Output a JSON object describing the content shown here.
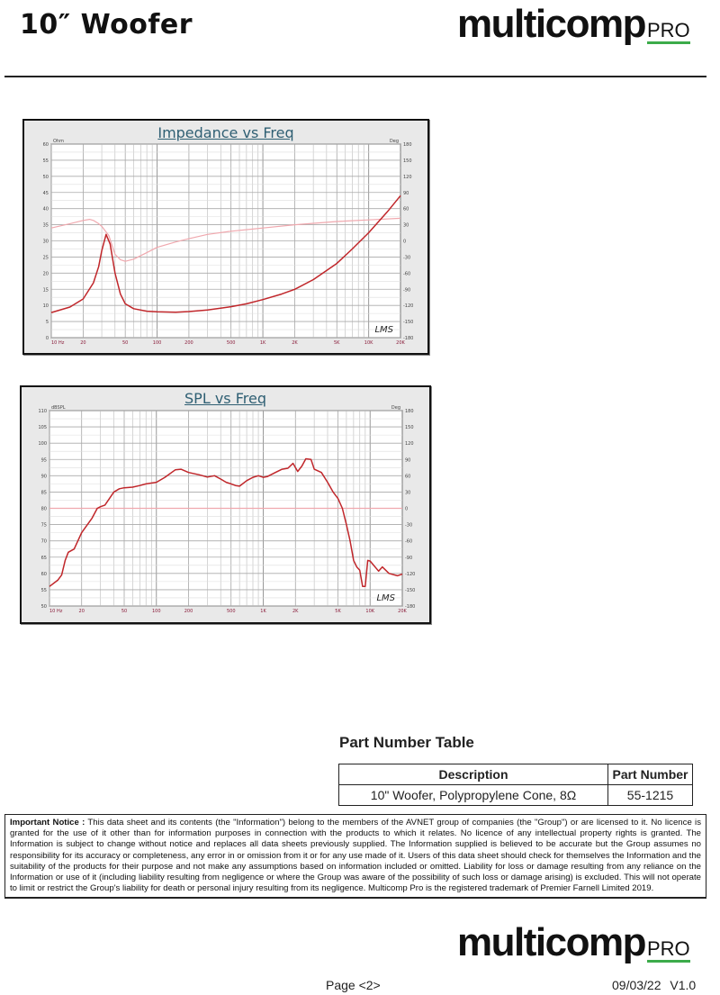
{
  "header": {
    "title": "10″ Woofer",
    "logo_main": "multicomp",
    "logo_pro": "PRO"
  },
  "charts_text": {
    "impedance_title": "Impedance vs Freq",
    "spl_title": "SPL vs Freq"
  },
  "chart_data": [
    {
      "type": "line",
      "title": "Impedance vs Freq",
      "ylabel": "Ohm",
      "y2label": "Deg",
      "xscale": "log",
      "xlim": [
        10,
        20000
      ],
      "ylim": [
        0,
        60
      ],
      "y2lim": [
        -180,
        180
      ],
      "grid": true,
      "xticks": [
        "10 Hz",
        "20",
        "50",
        "100",
        "200",
        "500",
        "1K",
        "2K",
        "5K",
        "10K",
        "20K"
      ],
      "yticks": [
        "0",
        "5",
        "10",
        "15",
        "20",
        "25",
        "30",
        "35",
        "40",
        "45",
        "50",
        "55",
        "60"
      ],
      "y2ticks": [
        "-180",
        "-150",
        "-120",
        "-90",
        "-60",
        "-30",
        "0",
        "30",
        "60",
        "90",
        "120",
        "150",
        "180"
      ],
      "watermark": "LMS",
      "series": [
        {
          "axis": "left",
          "color": "#c0262a",
          "x": [
            10,
            15,
            20,
            25,
            28,
            30,
            33,
            36,
            40,
            45,
            50,
            60,
            80,
            100,
            150,
            200,
            300,
            500,
            700,
            1000,
            1500,
            2000,
            3000,
            5000,
            7000,
            10000,
            15000,
            20000
          ],
          "y": [
            7.8,
            9.5,
            12,
            17,
            22,
            27,
            32,
            29,
            20,
            13.5,
            10.5,
            9,
            8.2,
            8,
            7.9,
            8.1,
            8.6,
            9.6,
            10.5,
            11.8,
            13.5,
            15,
            18,
            23,
            27.5,
            32.5,
            39,
            44
          ]
        },
        {
          "axis": "right",
          "color": "#f0a8ae",
          "x": [
            10,
            15,
            20,
            23,
            25,
            28,
            30,
            35,
            40,
            45,
            50,
            60,
            80,
            100,
            150,
            200,
            300,
            500,
            1000,
            2000,
            5000,
            10000,
            20000
          ],
          "y": [
            24,
            32,
            38,
            40,
            38,
            32,
            27,
            10,
            -25,
            -35,
            -38,
            -34,
            -22,
            -12,
            -2,
            4,
            12,
            18,
            24,
            30,
            36,
            39,
            42
          ]
        }
      ]
    },
    {
      "type": "line",
      "title": "SPL vs Freq",
      "ylabel": "dBSPL",
      "y2label": "Deg",
      "xscale": "log",
      "xlim": [
        10,
        20000
      ],
      "ylim": [
        50,
        110
      ],
      "y2lim": [
        -180,
        180
      ],
      "grid": true,
      "xticks": [
        "10 Hz",
        "20",
        "50",
        "100",
        "200",
        "500",
        "1K",
        "2K",
        "5K",
        "10K",
        "20K"
      ],
      "yticks": [
        "50",
        "55",
        "60",
        "65",
        "70",
        "75",
        "80",
        "85",
        "90",
        "95",
        "100",
        "105",
        "110"
      ],
      "y2ticks": [
        "-180",
        "-150",
        "-120",
        "-90",
        "-60",
        "-30",
        "0",
        "30",
        "60",
        "90",
        "120",
        "150",
        "180"
      ],
      "watermark": "LMS",
      "series": [
        {
          "axis": "left",
          "color": "#c0262a",
          "x": [
            10,
            12,
            13,
            14,
            15,
            17,
            20,
            25,
            28,
            30,
            33,
            40,
            45,
            50,
            60,
            70,
            80,
            100,
            120,
            150,
            170,
            200,
            250,
            300,
            350,
            400,
            450,
            500,
            550,
            600,
            700,
            800,
            900,
            1000,
            1100,
            1300,
            1500,
            1700,
            1900,
            2100,
            2300,
            2500,
            2800,
            3000,
            3500,
            4000,
            4500,
            5000,
            5500,
            6000,
            6500,
            7000,
            7500,
            8000,
            8500,
            9000,
            9500,
            10000,
            12000,
            13000,
            15000,
            18000,
            20000
          ],
          "y": [
            56,
            58,
            59.5,
            64,
            66.5,
            67.5,
            72.5,
            77,
            80,
            80.5,
            81,
            85,
            86,
            86.3,
            86.5,
            87,
            87.5,
            88,
            89.5,
            91.8,
            92,
            91,
            90.3,
            89.6,
            90,
            89,
            88,
            87.5,
            87,
            86.8,
            88.5,
            89.5,
            90,
            89.5,
            89.8,
            91,
            92,
            92.3,
            93.8,
            91.3,
            93,
            95.2,
            95,
            92,
            91,
            88,
            85,
            83,
            80,
            75,
            70,
            64,
            62,
            61,
            56,
            56,
            64,
            63.8,
            60.7,
            62,
            60,
            59.3,
            59.8
          ]
        },
        {
          "axis": "right",
          "color": "#f0a8ae",
          "x": [
            10,
            20000
          ],
          "y": [
            0,
            0
          ]
        }
      ]
    }
  ],
  "part_table": {
    "title": "Part Number Table",
    "headers": [
      "Description",
      "Part Number"
    ],
    "rows": [
      [
        "10\" Woofer, Polypropylene Cone, 8Ω",
        "55-1215"
      ]
    ]
  },
  "notice": {
    "label": "Important Notice :",
    "text": " This data sheet and its contents (the \"Information\") belong to the members of the AVNET group of companies (the \"Group\") or are licensed to it. No licence is granted for the use of it other than for information purposes in connection with the products to which it relates. No licence of any intellectual property rights is granted. The Information is subject to change without notice and replaces all data sheets previously supplied. The Information supplied is believed to be accurate but the Group assumes no responsibility for its accuracy or completeness, any error in or omission from it or for any use made of it. Users of this data sheet should check for themselves the Information and the suitability of the products for their purpose and not make any assumptions based on information included or omitted. Liability for loss or damage resulting from any reliance on the Information or use of it (including liability resulting from negligence or where the Group was aware of the possibility of such loss or damage arising) is excluded. This will not operate to limit or restrict the Group's liability for death or personal injury resulting from its negligence. Multicomp Pro is the registered trademark of Premier Farnell Limited 2019."
  },
  "footer": {
    "page": "Page <2>",
    "date": "09/03/22  V1.0"
  }
}
